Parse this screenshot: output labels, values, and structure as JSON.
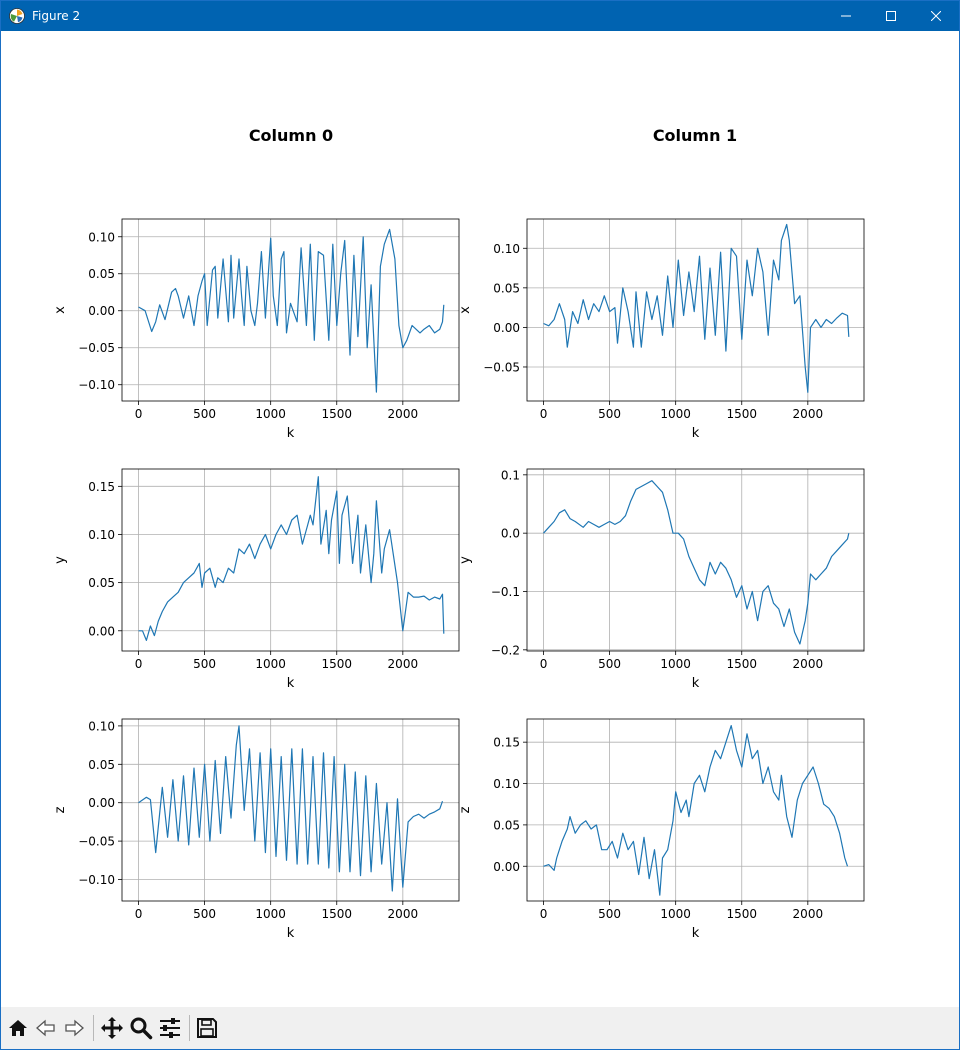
{
  "window": {
    "title": "Figure 2",
    "icons": {
      "app": "matplotlib-icon",
      "minimize": "minimize-icon",
      "maximize": "maximize-icon",
      "close": "close-icon"
    }
  },
  "figure": {
    "column_titles": [
      "Column 0",
      "Column 1"
    ]
  },
  "toolbar": {
    "buttons": [
      "home-icon",
      "back-icon",
      "forward-icon",
      "pan-icon",
      "zoom-icon",
      "configure-subplots-icon",
      "save-icon"
    ]
  },
  "chart_data": [
    {
      "type": "line",
      "title": "Column 0",
      "xlabel": "k",
      "ylabel": "x",
      "xlim": [
        -125,
        2425
      ],
      "ylim": [
        -0.122,
        0.124
      ],
      "xticks": [
        0,
        500,
        1000,
        1500,
        2000
      ],
      "xtick_labels": [
        "0",
        "500",
        "1000",
        "1500",
        "2000"
      ],
      "yticks": [
        -0.1,
        -0.05,
        0.0,
        0.05,
        0.1
      ],
      "ytick_labels": [
        "−0.10",
        "−0.05",
        "0.00",
        "0.05",
        "0.10"
      ],
      "grid": true,
      "color": "#1f77b4",
      "series": [
        {
          "x": [
            0,
            50,
            100,
            130,
            160,
            200,
            250,
            280,
            300,
            340,
            380,
            420,
            450,
            480,
            500,
            520,
            560,
            580,
            600,
            640,
            680,
            700,
            720,
            760,
            780,
            800,
            820,
            850,
            880,
            900,
            930,
            960,
            1000,
            1020,
            1050,
            1080,
            1100,
            1120,
            1150,
            1200,
            1230,
            1270,
            1300,
            1330,
            1360,
            1400,
            1440,
            1470,
            1500,
            1530,
            1560,
            1600,
            1630,
            1660,
            1700,
            1730,
            1760,
            1800,
            1830,
            1860,
            1900,
            1940,
            1970,
            2000,
            2030,
            2070,
            2100,
            2130,
            2160,
            2200,
            2240,
            2280,
            2300,
            2310
          ],
          "y": [
            0.005,
            0.0,
            -0.028,
            -0.015,
            0.008,
            -0.012,
            0.025,
            0.03,
            0.02,
            -0.01,
            0.02,
            -0.02,
            0.02,
            0.04,
            0.05,
            -0.02,
            0.055,
            0.06,
            -0.01,
            0.07,
            -0.015,
            0.075,
            -0.01,
            0.07,
            0.02,
            -0.02,
            0.06,
            0.0,
            -0.02,
            0.01,
            0.08,
            -0.01,
            0.098,
            0.02,
            -0.02,
            0.07,
            0.08,
            -0.03,
            0.01,
            -0.015,
            0.085,
            -0.02,
            0.09,
            -0.04,
            0.08,
            0.075,
            -0.04,
            0.09,
            -0.02,
            0.05,
            0.095,
            -0.06,
            0.075,
            -0.035,
            0.1,
            -0.05,
            0.035,
            -0.11,
            0.06,
            0.09,
            0.11,
            0.07,
            -0.02,
            -0.05,
            -0.04,
            -0.02,
            -0.025,
            -0.03,
            -0.025,
            -0.02,
            -0.03,
            -0.025,
            -0.015,
            0.008
          ]
        }
      ]
    },
    {
      "type": "line",
      "title": "Column 1",
      "xlabel": "k",
      "ylabel": "x",
      "xlim": [
        -125,
        2425
      ],
      "ylim": [
        -0.093,
        0.137
      ],
      "xticks": [
        0,
        500,
        1000,
        1500,
        2000
      ],
      "xtick_labels": [
        "0",
        "500",
        "1000",
        "1500",
        "2000"
      ],
      "yticks": [
        -0.05,
        0.0,
        0.05,
        0.1
      ],
      "ytick_labels": [
        "−0.05",
        "0.00",
        "0.05",
        "0.10"
      ],
      "grid": true,
      "color": "#1f77b4",
      "series": [
        {
          "x": [
            0,
            40,
            80,
            120,
            160,
            180,
            220,
            260,
            300,
            340,
            380,
            420,
            460,
            500,
            540,
            560,
            600,
            640,
            680,
            700,
            740,
            780,
            820,
            860,
            900,
            940,
            980,
            1020,
            1060,
            1100,
            1140,
            1180,
            1220,
            1260,
            1300,
            1340,
            1380,
            1420,
            1460,
            1500,
            1540,
            1580,
            1620,
            1660,
            1700,
            1740,
            1780,
            1800,
            1840,
            1860,
            1900,
            1940,
            1980,
            2000,
            2020,
            2060,
            2100,
            2140,
            2180,
            2220,
            2260,
            2300,
            2310
          ],
          "y": [
            0.005,
            0.002,
            0.01,
            0.03,
            0.01,
            -0.025,
            0.02,
            0.005,
            0.035,
            0.01,
            0.03,
            0.02,
            0.04,
            0.02,
            0.025,
            -0.02,
            0.05,
            0.02,
            -0.025,
            0.045,
            -0.025,
            0.045,
            0.01,
            0.04,
            -0.01,
            0.065,
            0.0,
            0.085,
            0.015,
            0.07,
            0.02,
            0.09,
            -0.015,
            0.075,
            -0.01,
            0.095,
            -0.03,
            0.1,
            0.09,
            -0.015,
            0.085,
            0.04,
            0.1,
            0.07,
            -0.01,
            0.085,
            0.06,
            0.11,
            0.13,
            0.11,
            0.03,
            0.04,
            -0.05,
            -0.082,
            0.0,
            0.01,
            0.0,
            0.01,
            0.005,
            0.012,
            0.018,
            0.015,
            -0.012
          ]
        }
      ]
    },
    {
      "type": "line",
      "title": "",
      "xlabel": "k",
      "ylabel": "y",
      "xlim": [
        -125,
        2425
      ],
      "ylim": [
        -0.021,
        0.168
      ],
      "xticks": [
        0,
        500,
        1000,
        1500,
        2000
      ],
      "xtick_labels": [
        "0",
        "500",
        "1000",
        "1500",
        "2000"
      ],
      "yticks": [
        0.0,
        0.05,
        0.1,
        0.15
      ],
      "ytick_labels": [
        "0.00",
        "0.05",
        "0.10",
        "0.15"
      ],
      "grid": true,
      "color": "#1f77b4",
      "series": [
        {
          "x": [
            0,
            30,
            60,
            90,
            120,
            150,
            180,
            220,
            260,
            300,
            340,
            380,
            420,
            460,
            480,
            500,
            540,
            580,
            600,
            640,
            680,
            720,
            760,
            800,
            840,
            880,
            920,
            960,
            1000,
            1040,
            1080,
            1120,
            1160,
            1200,
            1240,
            1280,
            1300,
            1320,
            1360,
            1380,
            1420,
            1440,
            1460,
            1500,
            1520,
            1540,
            1580,
            1620,
            1660,
            1680,
            1720,
            1760,
            1780,
            1800,
            1840,
            1860,
            1900,
            1960,
            2000,
            2040,
            2080,
            2120,
            2160,
            2200,
            2240,
            2280,
            2300,
            2310
          ],
          "y": [
            0.0,
            0.0,
            -0.01,
            0.005,
            -0.005,
            0.01,
            0.02,
            0.03,
            0.035,
            0.04,
            0.05,
            0.055,
            0.06,
            0.07,
            0.045,
            0.06,
            0.065,
            0.045,
            0.055,
            0.05,
            0.065,
            0.06,
            0.085,
            0.08,
            0.09,
            0.075,
            0.09,
            0.1,
            0.085,
            0.1,
            0.11,
            0.1,
            0.115,
            0.12,
            0.09,
            0.11,
            0.12,
            0.11,
            0.16,
            0.09,
            0.125,
            0.08,
            0.115,
            0.145,
            0.07,
            0.12,
            0.14,
            0.07,
            0.12,
            0.06,
            0.11,
            0.05,
            0.08,
            0.135,
            0.06,
            0.085,
            0.105,
            0.05,
            0.0,
            0.04,
            0.035,
            0.035,
            0.036,
            0.032,
            0.035,
            0.033,
            0.038,
            -0.003
          ]
        }
      ]
    },
    {
      "type": "line",
      "title": "",
      "xlabel": "k",
      "ylabel": "y",
      "xlim": [
        -125,
        2425
      ],
      "ylim": [
        -0.202,
        0.11
      ],
      "xticks": [
        0,
        500,
        1000,
        1500,
        2000
      ],
      "xtick_labels": [
        "0",
        "500",
        "1000",
        "1500",
        "2000"
      ],
      "yticks": [
        -0.2,
        -0.1,
        0.0,
        0.1
      ],
      "ytick_labels": [
        "−0.2",
        "−0.1",
        "0.0",
        "0.1"
      ],
      "grid": true,
      "color": "#1f77b4",
      "series": [
        {
          "x": [
            0,
            40,
            80,
            120,
            160,
            200,
            240,
            300,
            340,
            380,
            420,
            460,
            500,
            540,
            580,
            620,
            660,
            700,
            740,
            780,
            820,
            860,
            900,
            940,
            980,
            1020,
            1060,
            1100,
            1140,
            1180,
            1220,
            1260,
            1300,
            1340,
            1380,
            1420,
            1460,
            1500,
            1540,
            1580,
            1620,
            1660,
            1700,
            1740,
            1780,
            1820,
            1860,
            1900,
            1940,
            1980,
            2000,
            2020,
            2060,
            2100,
            2140,
            2180,
            2220,
            2260,
            2300,
            2310
          ],
          "y": [
            0.0,
            0.01,
            0.02,
            0.035,
            0.04,
            0.025,
            0.02,
            0.01,
            0.02,
            0.015,
            0.01,
            0.015,
            0.02,
            0.015,
            0.02,
            0.03,
            0.055,
            0.075,
            0.08,
            0.085,
            0.09,
            0.08,
            0.07,
            0.04,
            0.0,
            0.0,
            -0.01,
            -0.04,
            -0.06,
            -0.08,
            -0.09,
            -0.05,
            -0.07,
            -0.05,
            -0.06,
            -0.08,
            -0.11,
            -0.09,
            -0.13,
            -0.1,
            -0.15,
            -0.1,
            -0.09,
            -0.12,
            -0.13,
            -0.16,
            -0.13,
            -0.17,
            -0.19,
            -0.15,
            -0.12,
            -0.07,
            -0.08,
            -0.07,
            -0.06,
            -0.04,
            -0.03,
            -0.02,
            -0.01,
            0.0
          ]
        }
      ]
    },
    {
      "type": "line",
      "title": "",
      "xlabel": "k",
      "ylabel": "z",
      "xlim": [
        -125,
        2425
      ],
      "ylim": [
        -0.128,
        0.109
      ],
      "xticks": [
        0,
        500,
        1000,
        1500,
        2000
      ],
      "xtick_labels": [
        "0",
        "500",
        "1000",
        "1500",
        "2000"
      ],
      "yticks": [
        -0.1,
        -0.05,
        0.0,
        0.05,
        0.1
      ],
      "ytick_labels": [
        "−0.10",
        "−0.05",
        "0.00",
        "0.05",
        "0.10"
      ],
      "grid": true,
      "color": "#1f77b4",
      "series": [
        {
          "x": [
            0,
            60,
            90,
            130,
            180,
            220,
            260,
            300,
            340,
            380,
            420,
            460,
            500,
            540,
            580,
            620,
            660,
            700,
            740,
            760,
            800,
            840,
            880,
            920,
            960,
            1000,
            1040,
            1080,
            1120,
            1160,
            1200,
            1240,
            1280,
            1320,
            1360,
            1400,
            1440,
            1480,
            1520,
            1560,
            1600,
            1640,
            1680,
            1720,
            1760,
            1800,
            1840,
            1880,
            1920,
            1960,
            2000,
            2040,
            2080,
            2120,
            2160,
            2200,
            2240,
            2280,
            2300
          ],
          "y": [
            0.0,
            0.007,
            0.004,
            -0.065,
            0.02,
            -0.045,
            0.03,
            -0.05,
            0.035,
            -0.055,
            0.045,
            -0.045,
            0.05,
            -0.05,
            0.055,
            -0.04,
            0.06,
            -0.02,
            0.075,
            0.1,
            -0.01,
            0.07,
            -0.05,
            0.065,
            -0.065,
            0.07,
            -0.07,
            0.06,
            -0.075,
            0.07,
            -0.08,
            0.07,
            -0.08,
            0.06,
            -0.08,
            0.065,
            -0.085,
            0.06,
            -0.09,
            0.05,
            -0.09,
            0.04,
            -0.095,
            0.035,
            -0.09,
            0.025,
            -0.08,
            0.0,
            -0.115,
            0.005,
            -0.11,
            -0.025,
            -0.018,
            -0.015,
            -0.02,
            -0.015,
            -0.012,
            -0.008,
            0.002
          ]
        }
      ]
    },
    {
      "type": "line",
      "title": "",
      "xlabel": "k",
      "ylabel": "z",
      "xlim": [
        -125,
        2425
      ],
      "ylim": [
        -0.042,
        0.178
      ],
      "xticks": [
        0,
        500,
        1000,
        1500,
        2000
      ],
      "xtick_labels": [
        "0",
        "500",
        "1000",
        "1500",
        "2000"
      ],
      "yticks": [
        0.0,
        0.05,
        0.1,
        0.15
      ],
      "ytick_labels": [
        "0.00",
        "0.05",
        "0.10",
        "0.15"
      ],
      "grid": true,
      "color": "#1f77b4",
      "series": [
        {
          "x": [
            0,
            40,
            80,
            100,
            140,
            180,
            200,
            240,
            280,
            320,
            360,
            400,
            440,
            480,
            520,
            560,
            600,
            640,
            680,
            720,
            760,
            800,
            840,
            880,
            900,
            940,
            980,
            1000,
            1040,
            1080,
            1100,
            1140,
            1180,
            1220,
            1260,
            1300,
            1340,
            1380,
            1420,
            1460,
            1500,
            1540,
            1580,
            1620,
            1660,
            1700,
            1740,
            1780,
            1800,
            1840,
            1880,
            1920,
            1960,
            2000,
            2040,
            2080,
            2120,
            2160,
            2200,
            2240,
            2280,
            2300
          ],
          "y": [
            0.0,
            0.002,
            -0.005,
            0.01,
            0.03,
            0.045,
            0.06,
            0.04,
            0.05,
            0.055,
            0.045,
            0.05,
            0.02,
            0.02,
            0.03,
            0.01,
            0.04,
            0.02,
            0.03,
            -0.01,
            0.035,
            -0.015,
            0.02,
            -0.035,
            0.01,
            0.02,
            0.055,
            0.09,
            0.065,
            0.08,
            0.06,
            0.1,
            0.11,
            0.09,
            0.12,
            0.14,
            0.13,
            0.15,
            0.17,
            0.14,
            0.12,
            0.16,
            0.13,
            0.14,
            0.1,
            0.12,
            0.09,
            0.08,
            0.11,
            0.06,
            0.035,
            0.08,
            0.1,
            0.11,
            0.12,
            0.1,
            0.075,
            0.07,
            0.06,
            0.04,
            0.01,
            0.0
          ]
        }
      ]
    }
  ]
}
